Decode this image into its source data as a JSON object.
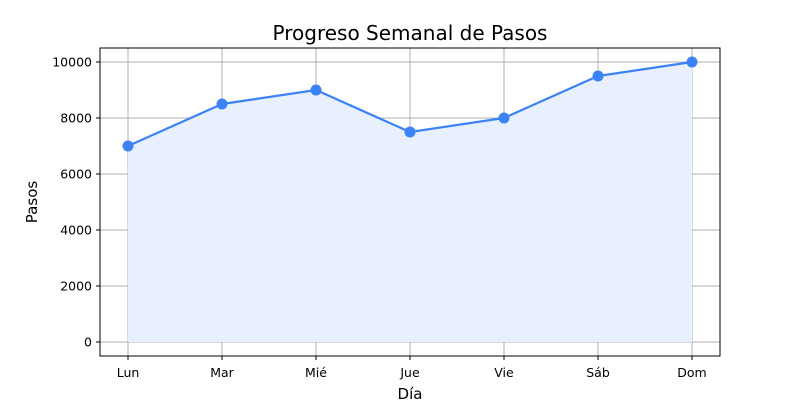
{
  "chart_data": {
    "type": "line",
    "title": "Progreso Semanal de Pasos",
    "xlabel": "Día",
    "ylabel": "Pasos",
    "categories": [
      "Lun",
      "Mar",
      "Mié",
      "Jue",
      "Vie",
      "Sáb",
      "Dom"
    ],
    "values": [
      7000,
      8500,
      9000,
      7500,
      8000,
      9500,
      10000
    ],
    "yticks": [
      0,
      2000,
      4000,
      6000,
      8000,
      10000
    ],
    "ylim": [
      -500,
      10500
    ],
    "grid": true,
    "fill_under_line": true,
    "line_color": "#3b82f6",
    "fill_color": "#e8f0fd"
  }
}
